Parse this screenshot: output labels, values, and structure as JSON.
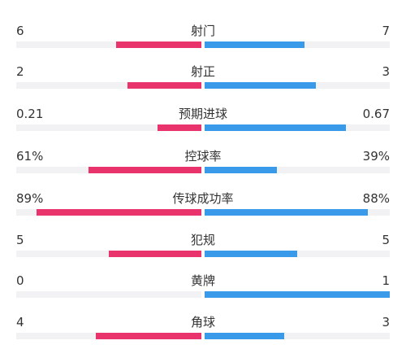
{
  "colors": {
    "home": "#e8336d",
    "away": "#3a9aea",
    "track": "#f2f2f4",
    "text": "#333333"
  },
  "stats": [
    {
      "label": "射门",
      "home": "6",
      "away": "7",
      "home_share": 0.462,
      "away_share": 0.538
    },
    {
      "label": "射正",
      "home": "2",
      "away": "3",
      "home_share": 0.4,
      "away_share": 0.6
    },
    {
      "label": "预期进球",
      "home": "0.21",
      "away": "0.67",
      "home_share": 0.239,
      "away_share": 0.761
    },
    {
      "label": "控球率",
      "home": "61%",
      "away": "39%",
      "home_share": 0.61,
      "away_share": 0.39
    },
    {
      "label": "传球成功率",
      "home": "89%",
      "away": "88%",
      "home_share": 0.89,
      "away_share": 0.88
    },
    {
      "label": "犯规",
      "home": "5",
      "away": "5",
      "home_share": 0.5,
      "away_share": 0.5
    },
    {
      "label": "黄牌",
      "home": "0",
      "away": "1",
      "home_share": 0.0,
      "away_share": 1.0
    },
    {
      "label": "角球",
      "home": "4",
      "away": "3",
      "home_share": 0.571,
      "away_share": 0.429
    }
  ]
}
